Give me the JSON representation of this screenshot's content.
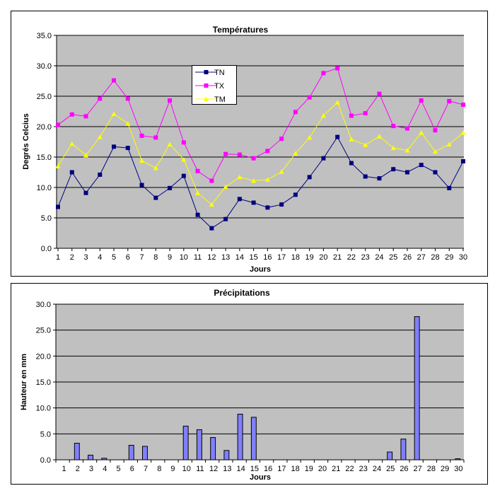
{
  "chart_data": [
    {
      "type": "line",
      "title": "Températures",
      "xlabel": "Jours",
      "ylabel": "Degrés Celcius",
      "ylim": [
        0,
        35
      ],
      "yticks": [
        "0.0",
        "5.0",
        "10.0",
        "15.0",
        "20.0",
        "25.0",
        "30.0",
        "35.0"
      ],
      "grid": true,
      "legend_position": "top-center",
      "x": [
        1,
        2,
        3,
        4,
        5,
        6,
        7,
        8,
        9,
        10,
        11,
        12,
        13,
        14,
        15,
        16,
        17,
        18,
        19,
        20,
        21,
        22,
        23,
        24,
        25,
        26,
        27,
        28,
        29,
        30
      ],
      "series": [
        {
          "name": "TN",
          "color": "#000080",
          "marker": "square",
          "values": [
            6.8,
            12.5,
            9.1,
            12.1,
            16.7,
            16.5,
            10.4,
            8.3,
            9.9,
            11.9,
            5.5,
            3.3,
            4.8,
            8.1,
            7.5,
            6.7,
            7.2,
            8.8,
            11.7,
            14.8,
            18.3,
            14.0,
            11.8,
            11.5,
            13.0,
            12.5,
            13.7,
            12.5,
            9.9,
            14.3
          ]
        },
        {
          "name": "TX",
          "color": "#FF00FF",
          "marker": "square",
          "values": [
            20.3,
            22.0,
            21.7,
            24.6,
            27.6,
            24.6,
            18.5,
            18.2,
            24.3,
            17.4,
            12.7,
            11.1,
            15.5,
            15.4,
            14.8,
            16.0,
            18.0,
            22.4,
            24.8,
            28.8,
            29.6,
            21.8,
            22.2,
            25.4,
            20.1,
            19.7,
            24.3,
            19.4,
            24.2,
            23.6
          ]
        },
        {
          "name": "TM",
          "color": "#FFFF00",
          "marker": "triangle",
          "values": [
            13.5,
            17.2,
            15.3,
            18.3,
            22.1,
            20.5,
            14.4,
            13.2,
            17.1,
            14.6,
            9.1,
            7.2,
            10.1,
            11.7,
            11.1,
            11.3,
            12.6,
            15.6,
            18.2,
            21.8,
            24.0,
            17.9,
            17.0,
            18.4,
            16.5,
            16.1,
            19.0,
            15.9,
            17.1,
            19.0
          ]
        }
      ]
    },
    {
      "type": "bar",
      "title": "Précipitations",
      "xlabel": "Jours",
      "ylabel": "Hauteur en mm",
      "ylim": [
        0,
        30
      ],
      "yticks": [
        "0.0",
        "5.0",
        "10.0",
        "15.0",
        "20.0",
        "25.0",
        "30.0"
      ],
      "grid": true,
      "bar_color": "#8080FF",
      "categories": [
        "1",
        "2",
        "3",
        "4",
        "5",
        "6",
        "7",
        "8",
        "9",
        "10",
        "11",
        "12",
        "13",
        "14",
        "15",
        "16",
        "17",
        "18",
        "19",
        "20",
        "21",
        "22",
        "23",
        "24",
        "25",
        "26",
        "27",
        "28",
        "29",
        "30"
      ],
      "values": [
        0,
        3.2,
        0.9,
        0.3,
        0,
        2.8,
        2.6,
        0,
        0,
        6.5,
        5.8,
        4.3,
        1.8,
        8.8,
        8.2,
        0,
        0,
        0,
        0,
        0,
        0,
        0,
        0,
        0,
        1.5,
        4.0,
        27.6,
        0,
        0,
        0.2
      ]
    }
  ]
}
